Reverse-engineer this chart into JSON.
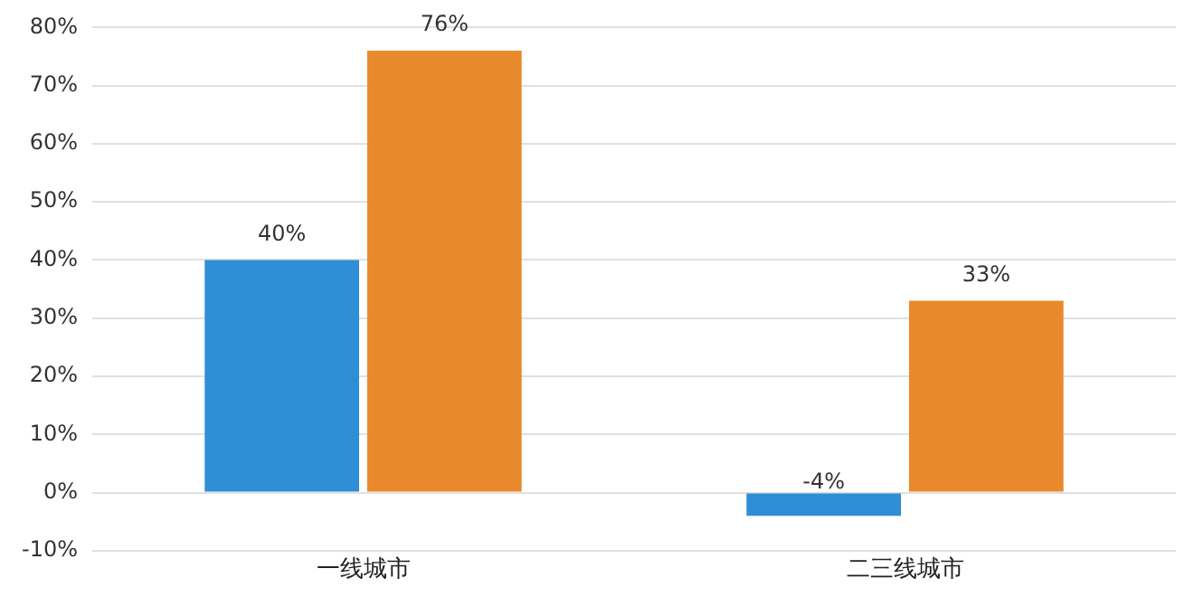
{
  "chart_data": {
    "type": "bar",
    "categories": [
      "一线城市",
      "二三线城市"
    ],
    "series": [
      {
        "color": "#2e8fd6",
        "values": [
          40,
          -4
        ],
        "value_labels": [
          "40%",
          "-4%"
        ]
      },
      {
        "color": "#e8892b",
        "values": [
          76,
          33
        ],
        "value_labels": [
          "76%",
          "33%"
        ]
      }
    ],
    "ylim": [
      -10,
      80
    ],
    "yticks": [
      {
        "value": -10,
        "label": "-10%"
      },
      {
        "value": 0,
        "label": "0%"
      },
      {
        "value": 10,
        "label": "10%"
      },
      {
        "value": 20,
        "label": "20%"
      },
      {
        "value": 30,
        "label": "30%"
      },
      {
        "value": 40,
        "label": "40%"
      },
      {
        "value": 50,
        "label": "50%"
      },
      {
        "value": 60,
        "label": "60%"
      },
      {
        "value": 70,
        "label": "70%"
      },
      {
        "value": 80,
        "label": "80%"
      }
    ],
    "grid": "y",
    "legend": false
  }
}
